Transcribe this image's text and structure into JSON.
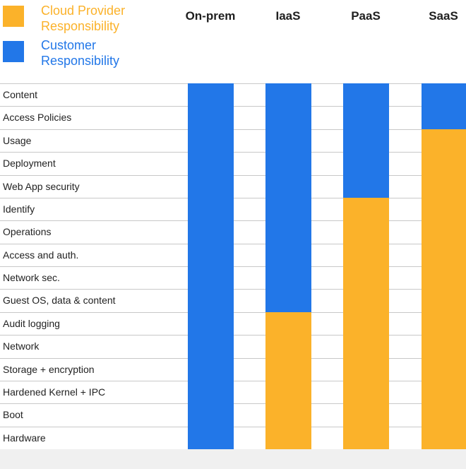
{
  "legend": {
    "provider": {
      "label_line1": "Cloud Provider",
      "label_line2": "Responsibility",
      "color": "#FBB22A"
    },
    "customer": {
      "label_line1": "Customer",
      "label_line2": "Responsibility",
      "color": "#2277E8"
    }
  },
  "columns": [
    "On-prem",
    "IaaS",
    "PaaS",
    "SaaS"
  ],
  "rows": [
    "Content",
    "Access Policies",
    "Usage",
    "Deployment",
    "Web App security",
    "Identify",
    "Operations",
    "Access and auth.",
    "Network sec.",
    "Guest OS, data & content",
    "Audit logging",
    "Network",
    "Storage + encryption",
    "Hardened Kernel + IPC",
    "Boot",
    "Hardware"
  ],
  "customer_rows_per_column": {
    "On-prem": 16,
    "IaaS": 10,
    "PaaS": 5,
    "SaaS": 2
  }
}
